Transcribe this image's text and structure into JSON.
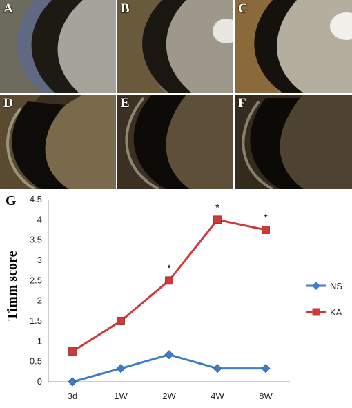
{
  "figure": {
    "panels": [
      "A",
      "B",
      "C",
      "D",
      "E",
      "F"
    ],
    "panel_label": "G"
  },
  "chart_data": {
    "type": "line",
    "categories": [
      "3d",
      "1W",
      "2W",
      "4W",
      "8W"
    ],
    "series": [
      {
        "name": "NS",
        "values": [
          0,
          0.33,
          0.67,
          0.33,
          0.33
        ],
        "color": "#3d7cc9",
        "marker": "diamond"
      },
      {
        "name": "KA",
        "values": [
          0.75,
          1.5,
          2.5,
          4.0,
          3.75
        ],
        "color": "#cc3a3a",
        "marker": "square"
      }
    ],
    "significance": [
      {
        "series": "KA",
        "category": "2W",
        "label": "*"
      },
      {
        "series": "KA",
        "category": "4W",
        "label": "*"
      },
      {
        "series": "KA",
        "category": "8W",
        "label": "*"
      }
    ],
    "xlabel": "",
    "ylabel": "Timm score",
    "ylim": [
      0,
      4.5
    ],
    "yticks": [
      "0",
      "0.5",
      "1",
      "1.5",
      "2",
      "2.5",
      "3",
      "3.5",
      "4",
      "4.5"
    ],
    "grid": false,
    "legend_position": "right"
  }
}
